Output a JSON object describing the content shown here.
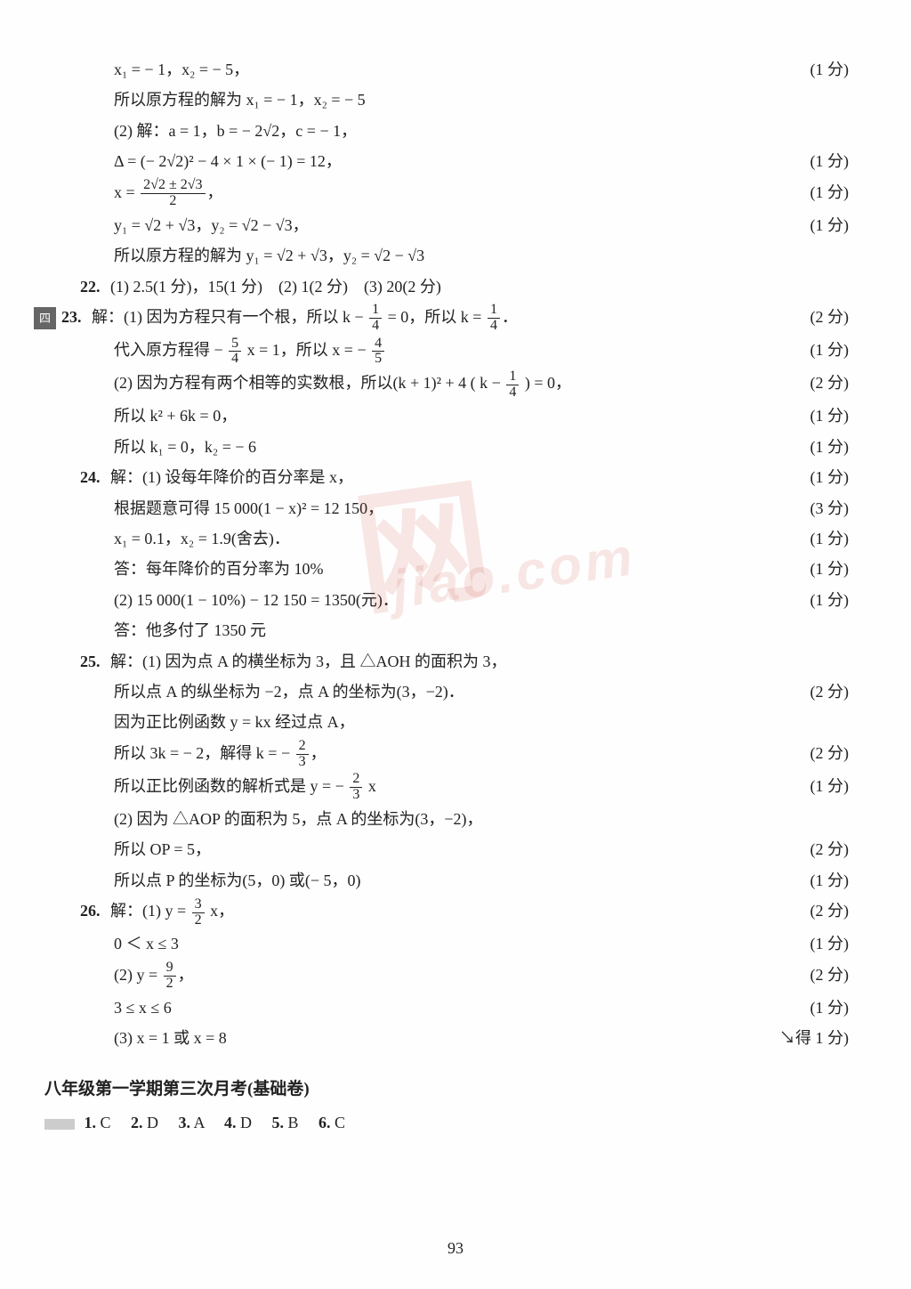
{
  "lines": [
    {
      "indent": "body",
      "text": "x₁ = − 1，x₂ = − 5，",
      "score": "(1 分)"
    },
    {
      "indent": "body",
      "text": "所以原方程的解为 x₁ = − 1，x₂ = − 5"
    },
    {
      "indent": "body",
      "text": "(2) 解：a = 1，b = − 2√2，c = − 1，"
    },
    {
      "indent": "body",
      "text": "Δ = (− 2√2)² − 4 × 1 × (− 1) = 12，",
      "score": "(1 分)"
    },
    {
      "indent": "body",
      "html": "x = <span class='frac'><span class='n'>2√2 ± 2√3</span><span class='d'>2</span></span>，",
      "score": "(1 分)"
    },
    {
      "indent": "body",
      "text": "y₁ = √2 + √3，y₂ = √2 − √3，",
      "score": "(1 分)"
    },
    {
      "indent": "body",
      "text": "所以原方程的解为 y₁ = √2 + √3，y₂ = √2 − √3"
    },
    {
      "indent": "q",
      "qnum": "22.",
      "text": "(1) 2.5(1 分)，15(1 分)　(2) 1(2 分)　(3) 20(2 分)"
    },
    {
      "indent": "q",
      "sect": "四",
      "qnum": "23.",
      "html": "解：(1) 因为方程只有一个根，所以 k − <span class='frac'><span class='n'>1</span><span class='d'>4</span></span> = 0，所以 k = <span class='frac'><span class='n'>1</span><span class='d'>4</span></span>．",
      "score": "(2 分)"
    },
    {
      "indent": "body",
      "html": "代入原方程得 − <span class='frac'><span class='n'>5</span><span class='d'>4</span></span> x = 1，所以 x = − <span class='frac'><span class='n'>4</span><span class='d'>5</span></span>",
      "score": "(1 分)"
    },
    {
      "indent": "body",
      "html": "(2) 因为方程有两个相等的实数根，所以(k + 1)² + 4 ( k − <span class='frac'><span class='n'>1</span><span class='d'>4</span></span> ) = 0，",
      "score": "(2 分)"
    },
    {
      "indent": "body",
      "text": "所以 k² + 6k = 0，",
      "score": "(1 分)"
    },
    {
      "indent": "body",
      "text": "所以 k₁ = 0，k₂ = − 6",
      "score": "(1 分)"
    },
    {
      "indent": "q",
      "qnum": "24.",
      "text": "解：(1) 设每年降价的百分率是 x，",
      "score": "(1 分)"
    },
    {
      "indent": "body",
      "text": "根据题意可得 15 000(1 − x)² = 12 150，",
      "score": "(3 分)"
    },
    {
      "indent": "body",
      "text": "x₁ = 0.1，x₂ = 1.9(舍去)．",
      "score": "(1 分)"
    },
    {
      "indent": "body",
      "text": "答：每年降价的百分率为 10%",
      "score": "(1 分)"
    },
    {
      "indent": "body",
      "text": "(2) 15 000(1 − 10%) − 12 150 = 1350(元)．",
      "score": "(1 分)"
    },
    {
      "indent": "body",
      "text": "答：他多付了 1350 元"
    },
    {
      "indent": "q",
      "qnum": "25.",
      "text": "解：(1) 因为点 A 的横坐标为 3，且 △AOH 的面积为 3，"
    },
    {
      "indent": "body",
      "text": "所以点 A 的纵坐标为 −2，点 A 的坐标为(3，−2)．",
      "score": "(2 分)"
    },
    {
      "indent": "body",
      "text": "因为正比例函数 y = kx 经过点 A，"
    },
    {
      "indent": "body",
      "html": "所以 3k = − 2，解得 k = − <span class='frac'><span class='n'>2</span><span class='d'>3</span></span>，",
      "score": "(2 分)"
    },
    {
      "indent": "body",
      "html": "所以正比例函数的解析式是 y = − <span class='frac'><span class='n'>2</span><span class='d'>3</span></span> x",
      "score": "(1 分)"
    },
    {
      "indent": "body",
      "text": "(2) 因为 △AOP 的面积为 5，点 A 的坐标为(3，−2)，"
    },
    {
      "indent": "body",
      "text": "所以 OP = 5，",
      "score": "(2 分)"
    },
    {
      "indent": "body",
      "text": "所以点 P 的坐标为(5，0) 或(− 5，0)",
      "score": "(1 分)"
    },
    {
      "indent": "q",
      "qnum": "26.",
      "html": "解：(1) y = <span class='frac'><span class='n'>3</span><span class='d'>2</span></span> x，",
      "score": "(2 分)"
    },
    {
      "indent": "body",
      "text": "0 ＜ x ≤ 3",
      "score": "(1 分)"
    },
    {
      "indent": "body",
      "html": "(2) y = <span class='frac'><span class='n'>9</span><span class='d'>2</span></span>，",
      "score": "(2 分)"
    },
    {
      "indent": "body",
      "text": "3 ≤ x ≤ 6",
      "score": "(1 分)"
    },
    {
      "indent": "body",
      "text": "(3) x = 1 或 x = 8",
      "score": "↘得 1 分)"
    }
  ],
  "title2": "八年级第一学期第三次月考(基础卷)",
  "mc_label": "一",
  "mc": [
    {
      "n": "1.",
      "a": "C"
    },
    {
      "n": "2.",
      "a": "D"
    },
    {
      "n": "3.",
      "a": "A"
    },
    {
      "n": "4.",
      "a": "D"
    },
    {
      "n": "5.",
      "a": "B"
    },
    {
      "n": "6.",
      "a": "C"
    }
  ],
  "page_number": "93",
  "watermark1": "网",
  "watermark2": "jiao.com"
}
